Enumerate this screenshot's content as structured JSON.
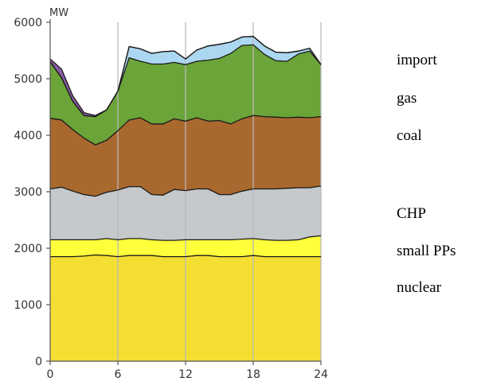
{
  "chart_data": {
    "type": "area",
    "stacked": true,
    "unit_label": "MW",
    "x": [
      0,
      1,
      2,
      3,
      4,
      5,
      6,
      7,
      8,
      9,
      10,
      11,
      12,
      13,
      14,
      15,
      16,
      17,
      18,
      19,
      20,
      21,
      22,
      23,
      24
    ],
    "xticks": [
      0,
      6,
      12,
      18,
      24
    ],
    "yticks": [
      0,
      1000,
      2000,
      3000,
      4000,
      5000,
      6000
    ],
    "xlim": [
      0,
      24
    ],
    "ylim": [
      0,
      6000
    ],
    "grid": true,
    "series": [
      {
        "name": "nuclear",
        "color": "#f5de32",
        "values": [
          1850,
          1850,
          1850,
          1860,
          1880,
          1870,
          1850,
          1870,
          1870,
          1870,
          1850,
          1850,
          1850,
          1870,
          1870,
          1850,
          1850,
          1850,
          1870,
          1850,
          1850,
          1850,
          1850,
          1850,
          1850
        ]
      },
      {
        "name": "small PPs",
        "color": "#ffff3c",
        "values": [
          300,
          300,
          300,
          290,
          270,
          300,
          300,
          300,
          300,
          280,
          290,
          290,
          300,
          280,
          280,
          300,
          300,
          310,
          300,
          300,
          290,
          290,
          300,
          350,
          370
        ]
      },
      {
        "name": "CHP",
        "color": "#c6c9cc",
        "values": [
          900,
          930,
          860,
          800,
          770,
          820,
          880,
          920,
          920,
          800,
          800,
          900,
          870,
          900,
          900,
          800,
          800,
          850,
          880,
          900,
          910,
          920,
          920,
          870,
          880
        ]
      },
      {
        "name": "coal",
        "color": "#a8682e",
        "values": [
          1250,
          1190,
          1090,
          1000,
          910,
          920,
          1050,
          1180,
          1220,
          1250,
          1260,
          1250,
          1230,
          1260,
          1200,
          1310,
          1250,
          1280,
          1300,
          1280,
          1270,
          1250,
          1250,
          1240,
          1230
        ]
      },
      {
        "name": "gas",
        "color": "#6ba438",
        "values": [
          1000,
          750,
          500,
          400,
          500,
          540,
          700,
          1100,
          1000,
          1060,
          1060,
          1000,
          1000,
          1000,
          1080,
          1100,
          1250,
          1300,
          1250,
          1100,
          1000,
          1000,
          1120,
          1180,
          920
        ]
      },
      {
        "name": "import",
        "color": "#acd7f0",
        "values": [
          0,
          0,
          0,
          0,
          0,
          0,
          0,
          200,
          220,
          190,
          220,
          200,
          100,
          200,
          250,
          250,
          200,
          150,
          150,
          150,
          150,
          150,
          50,
          50,
          0
        ]
      },
      {
        "name": "",
        "color": "#8a5ca6",
        "values": [
          50,
          150,
          100,
          50,
          20,
          0,
          0,
          0,
          0,
          0,
          0,
          0,
          0,
          0,
          0,
          0,
          0,
          0,
          0,
          0,
          0,
          0,
          0,
          0,
          0
        ]
      }
    ],
    "legend": {
      "placement": "right",
      "items": [
        "import",
        "gas",
        "coal",
        "CHP",
        "small PPs",
        "nuclear"
      ]
    }
  }
}
